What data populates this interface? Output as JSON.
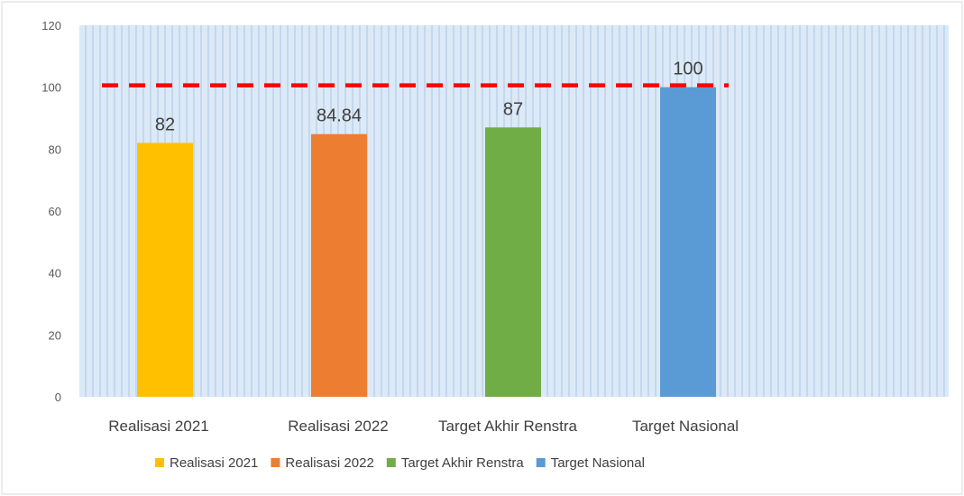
{
  "chart_data": {
    "type": "bar",
    "categories": [
      "Realisasi 2021",
      "Realisasi 2022",
      "Target Akhir Renstra",
      "Target Nasional"
    ],
    "values": [
      82,
      84.84,
      87,
      100
    ],
    "data_labels": [
      "82",
      "84.84",
      "87",
      "100"
    ],
    "ylim": [
      0,
      120
    ],
    "yticks": [
      0,
      20,
      40,
      60,
      80,
      100,
      120
    ],
    "legend": [
      "Realisasi 2021",
      "Realisasi 2022",
      "Target Akhir Renstra",
      "Target Nasional"
    ],
    "legend_position": "bottom",
    "reference_line": {
      "value": 100,
      "style": "dashed",
      "color": "#ff0000"
    },
    "colors": [
      "#ffc000",
      "#ed7d31",
      "#70ad47",
      "#5b9bd5"
    ],
    "plot_background": "#dbe8f5",
    "grid": true
  }
}
